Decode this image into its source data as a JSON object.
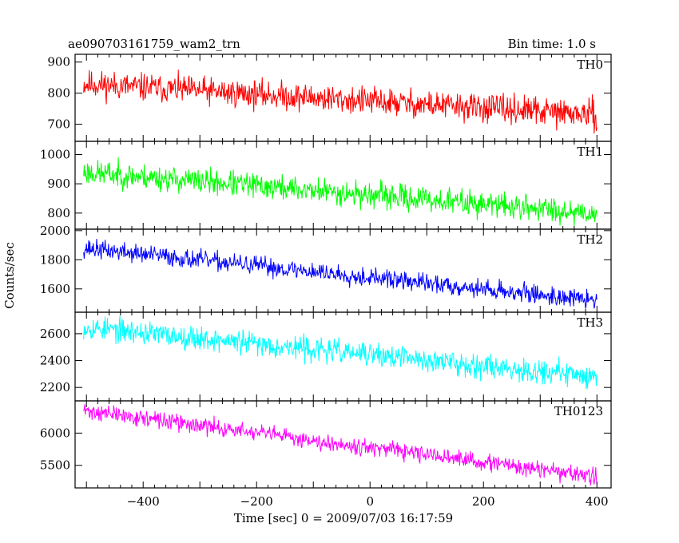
{
  "chart_data": {
    "type": "line",
    "title": "ae090703161759_wam2_trn",
    "subtitle": "Bin time: 1.0 s",
    "xlabel": "Time [sec] 0 = 2009/07/03 16:17:59",
    "ylabel": "Counts/sec",
    "xlim": [
      -520,
      425
    ],
    "x_ticks": [
      -400,
      -200,
      0,
      200,
      400
    ],
    "x_tick_labels": [
      "−400",
      "−200",
      "0",
      "200",
      "400"
    ],
    "grid": false,
    "panels": [
      {
        "name": "TH0",
        "color": "#ff0000",
        "ylim": [
          645,
          925
        ],
        "y_ticks": [
          700,
          800,
          900
        ],
        "x_start": -505,
        "x_end": 400,
        "mean_start": 830,
        "mean_end": 730,
        "noise": 28,
        "seed": 11
      },
      {
        "name": "TH1",
        "color": "#00ff00",
        "ylim": [
          745,
          1045
        ],
        "y_ticks": [
          800,
          900,
          1000
        ],
        "x_start": -505,
        "x_end": 400,
        "mean_start": 940,
        "mean_end": 800,
        "noise": 27,
        "seed": 23
      },
      {
        "name": "TH2",
        "color": "#0000ff",
        "ylim": [
          1440,
          2010
        ],
        "y_ticks": [
          1600,
          1800,
          2000
        ],
        "x_start": -505,
        "x_end": 400,
        "mean_start": 1880,
        "mean_end": 1520,
        "noise": 40,
        "seed": 37
      },
      {
        "name": "TH3",
        "color": "#00ffff",
        "ylim": [
          2100,
          2760
        ],
        "y_ticks": [
          2200,
          2400,
          2600
        ],
        "x_start": -505,
        "x_end": 400,
        "mean_start": 2650,
        "mean_end": 2280,
        "noise": 55,
        "seed": 53
      },
      {
        "name": "TH0123",
        "color": "#ff00ff",
        "ylim": [
          5150,
          6500
        ],
        "y_ticks": [
          5500,
          6000
        ],
        "x_start": -505,
        "x_end": 400,
        "mean_start": 6350,
        "mean_end": 5320,
        "noise": 80,
        "seed": 71
      }
    ]
  }
}
